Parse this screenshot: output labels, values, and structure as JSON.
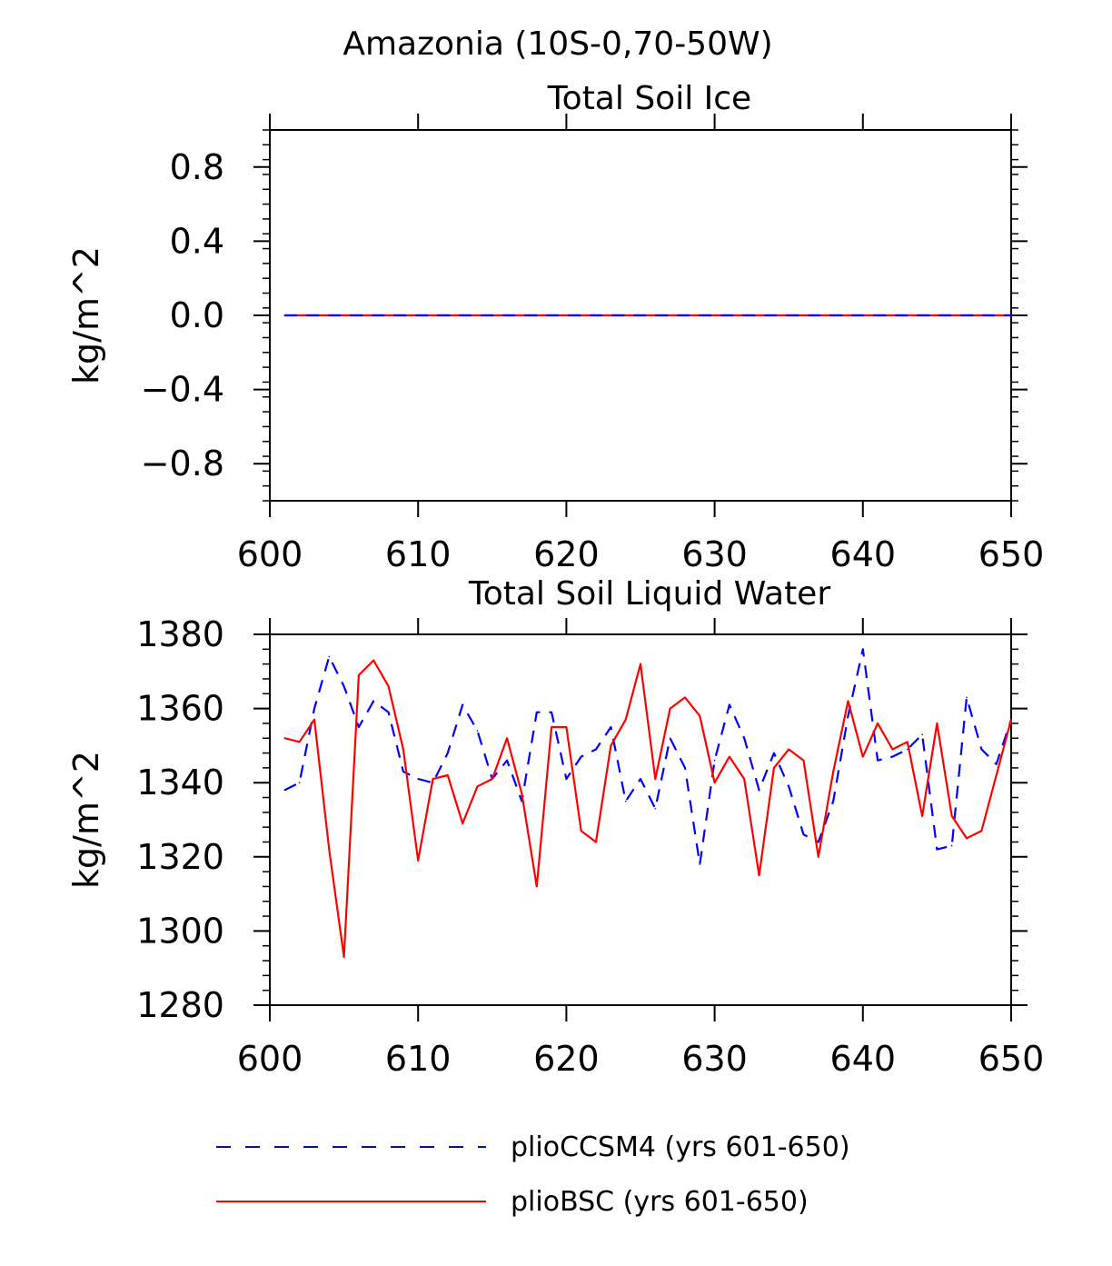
{
  "figure": {
    "main_title": "Amazonia (10S-0,70-50W)"
  },
  "legend": [
    {
      "name": "plioCCSM4 (yrs 601-650)",
      "color": "#0000ff",
      "style": "dashed"
    },
    {
      "name": "plioBSC (yrs 601-650)",
      "color": "#ff0000",
      "style": "solid"
    }
  ],
  "chart_data": [
    {
      "type": "line",
      "title": "Total Soil Ice",
      "xlabel": "",
      "ylabel": "kg/m^2",
      "xlim": [
        600,
        650
      ],
      "ylim": [
        -1.0,
        1.0
      ],
      "xticks": [
        600,
        610,
        620,
        630,
        640,
        650
      ],
      "xtick_labels": [
        "600",
        "610",
        "620",
        "630",
        "640",
        "650"
      ],
      "yticks": [
        -0.8,
        -0.4,
        0.0,
        0.4,
        0.8
      ],
      "ytick_labels": [
        "−0.8",
        "−0.4",
        "0.0",
        "0.4",
        "0.8"
      ],
      "grid": false,
      "x": [
        601,
        650
      ],
      "series": [
        {
          "name": "plioBSC (yrs 601-650)",
          "color": "#ff0000",
          "style": "solid",
          "values": [
            0.0,
            0.0
          ]
        },
        {
          "name": "plioCCSM4 (yrs 601-650)",
          "color": "#0000ff",
          "style": "dashed",
          "values": [
            0.0,
            0.0
          ]
        }
      ]
    },
    {
      "type": "line",
      "title": "Total Soil Liquid Water",
      "xlabel": "",
      "ylabel": "kg/m^2",
      "xlim": [
        600,
        650
      ],
      "ylim": [
        1280,
        1380
      ],
      "xticks": [
        600,
        610,
        620,
        630,
        640,
        650
      ],
      "xtick_labels": [
        "600",
        "610",
        "620",
        "630",
        "640",
        "650"
      ],
      "yticks": [
        1280,
        1300,
        1320,
        1340,
        1360,
        1380
      ],
      "ytick_labels": [
        "1280",
        "1300",
        "1320",
        "1340",
        "1360",
        "1380"
      ],
      "grid": false,
      "x": [
        601,
        602,
        603,
        604,
        605,
        606,
        607,
        608,
        609,
        610,
        611,
        612,
        613,
        614,
        615,
        616,
        617,
        618,
        619,
        620,
        621,
        622,
        623,
        624,
        625,
        626,
        627,
        628,
        629,
        630,
        631,
        632,
        633,
        634,
        635,
        636,
        637,
        638,
        639,
        640,
        641,
        642,
        643,
        644,
        645,
        646,
        647,
        648,
        649,
        650
      ],
      "series": [
        {
          "name": "plioCCSM4 (yrs 601-650)",
          "color": "#0000ff",
          "style": "dashed",
          "values": [
            1338,
            1340,
            1360,
            1374,
            1366,
            1355,
            1362,
            1359,
            1343,
            1341,
            1340,
            1348,
            1361,
            1354,
            1341,
            1346,
            1335,
            1359,
            1359,
            1341,
            1347,
            1349,
            1355,
            1335,
            1341,
            1333,
            1352,
            1344,
            1318,
            1346,
            1361,
            1352,
            1338,
            1348,
            1339,
            1326,
            1324,
            1335,
            1358,
            1376,
            1346,
            1347,
            1349,
            1353,
            1322,
            1323,
            1363,
            1349,
            1345,
            1357
          ]
        },
        {
          "name": "plioBSC (yrs 601-650)",
          "color": "#ff0000",
          "style": "solid",
          "values": [
            1352,
            1351,
            1357,
            1322,
            1293,
            1369,
            1373,
            1366,
            1349,
            1319,
            1341,
            1342,
            1329,
            1339,
            1341,
            1352,
            1337,
            1312,
            1355,
            1355,
            1327,
            1324,
            1350,
            1357,
            1372,
            1341,
            1360,
            1363,
            1358,
            1340,
            1347,
            1341,
            1315,
            1344,
            1349,
            1346,
            1320,
            1343,
            1362,
            1347,
            1356,
            1349,
            1351,
            1331,
            1356,
            1331,
            1325,
            1327,
            1342,
            1357
          ]
        }
      ]
    }
  ]
}
